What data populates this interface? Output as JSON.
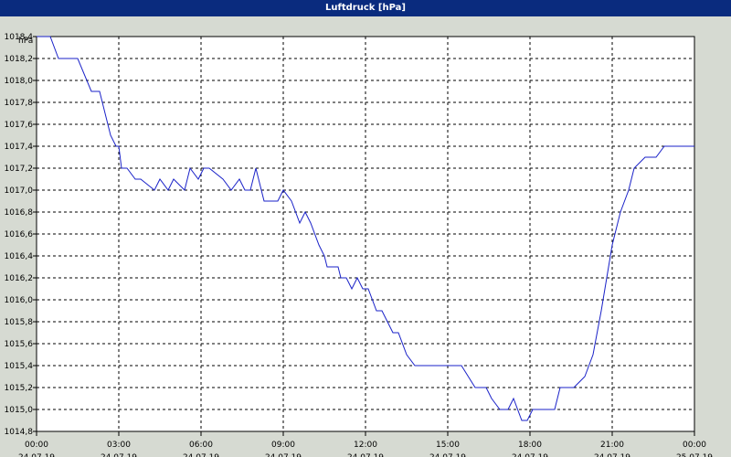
{
  "window": {
    "title": "Luftdruck [hPa]"
  },
  "colors": {
    "titlebar": "#0a2b7e",
    "line": "#1a22c8",
    "plot_bg": "#ffffff",
    "frame_bg": "#d6dad2"
  },
  "chart_data": {
    "type": "line",
    "title": "Luftdruck [hPa]",
    "ylabel": "hPa",
    "xlabel": "",
    "ylim": [
      1014.8,
      1018.4
    ],
    "xlim_hours": [
      0,
      24
    ],
    "grid": true,
    "y_ticks": [
      "1018,4",
      "1018,2",
      "1018,0",
      "1017,8",
      "1017,6",
      "1017,4",
      "1017,2",
      "1017,0",
      "1016,8",
      "1016,6",
      "1016,4",
      "1016,2",
      "1016,0",
      "1015,8",
      "1015,6",
      "1015,4",
      "1015,2",
      "1015,0",
      "1014,8"
    ],
    "y_tick_values": [
      1018.4,
      1018.2,
      1018.0,
      1017.8,
      1017.6,
      1017.4,
      1017.2,
      1017.0,
      1016.8,
      1016.6,
      1016.4,
      1016.2,
      1016.0,
      1015.8,
      1015.6,
      1015.4,
      1015.2,
      1015.0,
      1014.8
    ],
    "x_ticks": [
      {
        "time": "00:00",
        "date": "24.07.19"
      },
      {
        "time": "03:00",
        "date": "24.07.19"
      },
      {
        "time": "06:00",
        "date": "24.07.19"
      },
      {
        "time": "09:00",
        "date": "24.07.19"
      },
      {
        "time": "12:00",
        "date": "24.07.19"
      },
      {
        "time": "15:00",
        "date": "24.07.19"
      },
      {
        "time": "18:00",
        "date": "24.07.19"
      },
      {
        "time": "21:00",
        "date": "24.07.19"
      },
      {
        "time": "00:00",
        "date": "25.07.19"
      }
    ],
    "series": [
      {
        "x_hours": [
          0,
          0.5,
          0.8,
          1.5,
          2.0,
          2.3,
          2.5,
          2.7,
          2.9,
          3.0,
          3.1,
          3.3,
          3.6,
          3.8,
          4.3,
          4.5,
          4.8,
          5.0,
          5.4,
          5.6,
          5.9,
          6.1,
          6.3,
          6.8,
          7.1,
          7.4,
          7.6,
          7.8,
          8.0,
          8.3,
          8.6,
          8.8,
          9.0,
          9.3,
          9.6,
          9.8,
          10.0,
          10.3,
          10.5,
          10.6,
          10.8,
          11.0,
          11.1,
          11.3,
          11.5,
          11.7,
          11.9,
          12.1,
          12.4,
          12.6,
          12.8,
          13.0,
          13.2,
          13.5,
          13.8,
          14.0,
          14.3,
          14.6,
          15.0,
          15.5,
          16.0,
          16.4,
          16.6,
          16.9,
          17.2,
          17.4,
          17.7,
          17.9,
          18.1,
          18.4,
          18.9,
          19.1,
          19.3,
          19.6,
          20.0,
          20.3,
          20.6,
          20.8,
          21.0,
          21.3,
          21.6,
          21.8,
          22.2,
          22.6,
          22.9,
          23.2,
          23.6,
          23.9,
          24.0
        ],
        "values": [
          1018.4,
          1018.4,
          1018.2,
          1018.2,
          1017.9,
          1017.9,
          1017.7,
          1017.5,
          1017.4,
          1017.4,
          1017.2,
          1017.2,
          1017.1,
          1017.1,
          1017.0,
          1017.1,
          1017.0,
          1017.1,
          1017.0,
          1017.2,
          1017.1,
          1017.2,
          1017.2,
          1017.1,
          1017.0,
          1017.1,
          1017.0,
          1017.0,
          1017.2,
          1016.9,
          1016.9,
          1016.9,
          1017.0,
          1016.9,
          1016.7,
          1016.8,
          1016.7,
          1016.5,
          1016.4,
          1016.3,
          1016.3,
          1016.3,
          1016.2,
          1016.2,
          1016.1,
          1016.2,
          1016.1,
          1016.1,
          1015.9,
          1015.9,
          1015.8,
          1015.7,
          1015.7,
          1015.5,
          1015.4,
          1015.4,
          1015.4,
          1015.4,
          1015.4,
          1015.4,
          1015.2,
          1015.2,
          1015.1,
          1015.0,
          1015.0,
          1015.1,
          1014.9,
          1014.9,
          1015.0,
          1015.0,
          1015.0,
          1015.2,
          1015.2,
          1015.2,
          1015.3,
          1015.5,
          1015.9,
          1016.2,
          1016.5,
          1016.8,
          1017.0,
          1017.2,
          1017.3,
          1017.3,
          1017.4,
          1017.4,
          1017.4,
          1017.4,
          1017.4
        ]
      }
    ]
  }
}
